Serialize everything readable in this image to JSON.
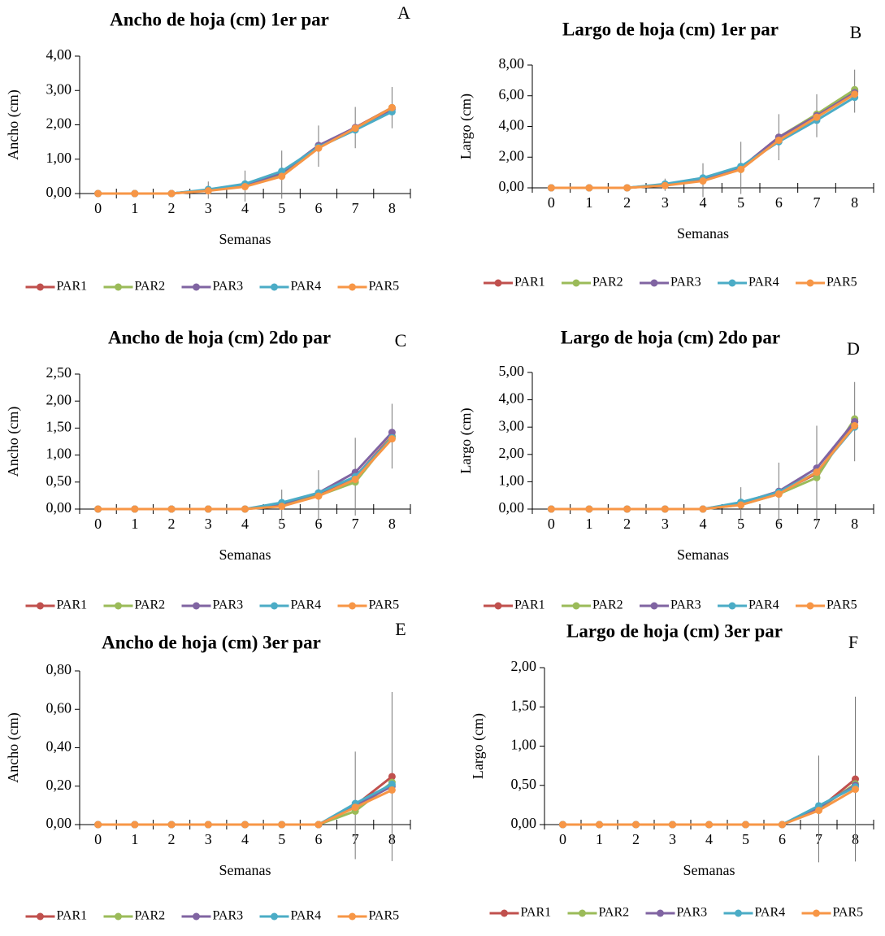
{
  "chart_data": [
    {
      "type": "line",
      "title": "Ancho de hoja (cm) 1er par",
      "panel": "A",
      "xlabel": "Semanas",
      "ylabel": "Ancho  (cm)",
      "categories": [
        "0",
        "1",
        "2",
        "3",
        "4",
        "5",
        "6",
        "7",
        "8"
      ],
      "ylim": [
        0,
        4
      ],
      "yticks": [
        {
          "value": 0,
          "label": "0,00"
        },
        {
          "value": 1,
          "label": "1,00"
        },
        {
          "value": 2,
          "label": "2,00"
        },
        {
          "value": 3,
          "label": "3,00"
        },
        {
          "value": 4,
          "label": "4,00"
        }
      ],
      "grid": false,
      "legend": "bottom",
      "series": [
        {
          "name": "PAR1",
          "color": "#c0504d",
          "values": [
            0,
            0,
            0,
            0.1,
            0.22,
            0.55,
            1.38,
            1.92,
            2.5
          ],
          "errors": [
            0,
            0,
            0,
            0.25,
            0.45,
            0.7,
            0.6,
            0.6,
            0.6
          ]
        },
        {
          "name": "PAR2",
          "color": "#9bbb59",
          "values": [
            0,
            0,
            0,
            0.1,
            0.22,
            0.52,
            1.35,
            1.9,
            2.5
          ]
        },
        {
          "name": "PAR3",
          "color": "#8064a2",
          "values": [
            0,
            0,
            0,
            0.1,
            0.25,
            0.6,
            1.4,
            1.92,
            2.45
          ]
        },
        {
          "name": "PAR4",
          "color": "#4bacc6",
          "values": [
            0,
            0,
            0,
            0.12,
            0.28,
            0.65,
            1.35,
            1.85,
            2.38
          ]
        },
        {
          "name": "PAR5",
          "color": "#f79646",
          "values": [
            0,
            0,
            0,
            0.08,
            0.2,
            0.5,
            1.32,
            1.9,
            2.5
          ]
        }
      ]
    },
    {
      "type": "line",
      "title": "Largo de hoja (cm) 1er par",
      "panel": "B",
      "xlabel": "Semanas",
      "ylabel": "Largo (cm)",
      "categories": [
        "0",
        "1",
        "2",
        "3",
        "4",
        "5",
        "6",
        "7",
        "8"
      ],
      "ylim": [
        0,
        8
      ],
      "yticks": [
        {
          "value": 0,
          "label": "0,00"
        },
        {
          "value": 2,
          "label": "2,00"
        },
        {
          "value": 4,
          "label": "4,00"
        },
        {
          "value": 6,
          "label": "6,00"
        },
        {
          "value": 8,
          "label": "8,00"
        }
      ],
      "grid": false,
      "legend": "bottom",
      "series": [
        {
          "name": "PAR1",
          "color": "#c0504d",
          "values": [
            0,
            0,
            0,
            0.2,
            0.5,
            1.3,
            3.3,
            4.7,
            6.3
          ],
          "errors": [
            0,
            0,
            0,
            0.4,
            1.1,
            1.7,
            1.5,
            1.4,
            1.4
          ]
        },
        {
          "name": "PAR2",
          "color": "#9bbb59",
          "values": [
            0,
            0,
            0,
            0.2,
            0.5,
            1.2,
            3.3,
            4.8,
            6.4
          ]
        },
        {
          "name": "PAR3",
          "color": "#8064a2",
          "values": [
            0,
            0,
            0,
            0.2,
            0.55,
            1.3,
            3.3,
            4.7,
            6.2
          ]
        },
        {
          "name": "PAR4",
          "color": "#4bacc6",
          "values": [
            0,
            0,
            0,
            0.25,
            0.65,
            1.4,
            3.0,
            4.4,
            5.9
          ]
        },
        {
          "name": "PAR5",
          "color": "#f79646",
          "values": [
            0,
            0,
            0,
            0.15,
            0.45,
            1.2,
            3.1,
            4.6,
            6.1
          ]
        }
      ]
    },
    {
      "type": "line",
      "title": "Ancho de hoja (cm) 2do par",
      "panel": "C",
      "xlabel": "Semanas",
      "ylabel": "Ancho  (cm)",
      "categories": [
        "0",
        "1",
        "2",
        "3",
        "4",
        "5",
        "6",
        "7",
        "8"
      ],
      "ylim": [
        0,
        2.5
      ],
      "yticks": [
        {
          "value": 0,
          "label": "0,00"
        },
        {
          "value": 0.5,
          "label": "0,50"
        },
        {
          "value": 1,
          "label": "1,00"
        },
        {
          "value": 1.5,
          "label": "1,50"
        },
        {
          "value": 2,
          "label": "2,00"
        },
        {
          "value": 2.5,
          "label": "2,50"
        }
      ],
      "grid": false,
      "legend": "bottom",
      "series": [
        {
          "name": "PAR1",
          "color": "#c0504d",
          "values": [
            0,
            0,
            0,
            0,
            0,
            0.08,
            0.27,
            0.6,
            1.35
          ],
          "errors": [
            0,
            0,
            0,
            0,
            0,
            0.28,
            0.45,
            0.72,
            0.6
          ]
        },
        {
          "name": "PAR2",
          "color": "#9bbb59",
          "values": [
            0,
            0,
            0,
            0,
            0,
            0.07,
            0.25,
            0.5,
            1.35
          ]
        },
        {
          "name": "PAR3",
          "color": "#8064a2",
          "values": [
            0,
            0,
            0,
            0,
            0,
            0.1,
            0.3,
            0.68,
            1.42
          ]
        },
        {
          "name": "PAR4",
          "color": "#4bacc6",
          "values": [
            0,
            0,
            0,
            0,
            0,
            0.12,
            0.3,
            0.6,
            1.32
          ]
        },
        {
          "name": "PAR5",
          "color": "#f79646",
          "values": [
            0,
            0,
            0,
            0,
            0,
            0.05,
            0.24,
            0.55,
            1.3
          ]
        }
      ]
    },
    {
      "type": "line",
      "title": "Largo de hoja (cm) 2do par",
      "panel": "D",
      "xlabel": "Semanas",
      "ylabel": "Largo (cm)",
      "categories": [
        "0",
        "1",
        "2",
        "3",
        "4",
        "5",
        "6",
        "7",
        "8"
      ],
      "ylim": [
        0,
        5
      ],
      "yticks": [
        {
          "value": 0,
          "label": "0,00"
        },
        {
          "value": 1,
          "label": "1,00"
        },
        {
          "value": 2,
          "label": "2,00"
        },
        {
          "value": 3,
          "label": "3,00"
        },
        {
          "value": 4,
          "label": "4,00"
        },
        {
          "value": 5,
          "label": "5,00"
        }
      ],
      "grid": false,
      "legend": "bottom",
      "series": [
        {
          "name": "PAR1",
          "color": "#c0504d",
          "values": [
            0,
            0,
            0,
            0,
            0,
            0.2,
            0.6,
            1.3,
            3.2
          ],
          "errors": [
            0,
            0,
            0,
            0,
            0,
            0.6,
            1.1,
            1.75,
            1.45
          ]
        },
        {
          "name": "PAR2",
          "color": "#9bbb59",
          "values": [
            0,
            0,
            0,
            0,
            0,
            0.15,
            0.55,
            1.15,
            3.3
          ]
        },
        {
          "name": "PAR3",
          "color": "#8064a2",
          "values": [
            0,
            0,
            0,
            0,
            0,
            0.22,
            0.65,
            1.5,
            3.2
          ]
        },
        {
          "name": "PAR4",
          "color": "#4bacc6",
          "values": [
            0,
            0,
            0,
            0,
            0,
            0.25,
            0.62,
            1.35,
            3.0
          ]
        },
        {
          "name": "PAR5",
          "color": "#f79646",
          "values": [
            0,
            0,
            0,
            0,
            0,
            0.15,
            0.55,
            1.35,
            3.05
          ]
        }
      ]
    },
    {
      "type": "line",
      "title": "Ancho de hoja (cm) 3er par",
      "panel": "E",
      "xlabel": "Semanas",
      "ylabel": "Ancho  (cm)",
      "categories": [
        "0",
        "1",
        "2",
        "3",
        "4",
        "5",
        "6",
        "7",
        "8"
      ],
      "ylim": [
        0,
        0.8
      ],
      "yticks": [
        {
          "value": 0,
          "label": "0,00"
        },
        {
          "value": 0.2,
          "label": "0,20"
        },
        {
          "value": 0.4,
          "label": "0,40"
        },
        {
          "value": 0.6,
          "label": "0,60"
        },
        {
          "value": 0.8,
          "label": "0,80"
        }
      ],
      "grid": false,
      "legend": "bottom",
      "series": [
        {
          "name": "PAR1",
          "color": "#c0504d",
          "values": [
            0,
            0,
            0,
            0,
            0,
            0,
            0,
            0.1,
            0.25
          ],
          "errors": [
            0,
            0,
            0,
            0,
            0,
            0,
            0,
            0.28,
            0.44
          ]
        },
        {
          "name": "PAR2",
          "color": "#9bbb59",
          "values": [
            0,
            0,
            0,
            0,
            0,
            0,
            0,
            0.07,
            0.22
          ]
        },
        {
          "name": "PAR3",
          "color": "#8064a2",
          "values": [
            0,
            0,
            0,
            0,
            0,
            0,
            0,
            0.1,
            0.2
          ]
        },
        {
          "name": "PAR4",
          "color": "#4bacc6",
          "values": [
            0,
            0,
            0,
            0,
            0,
            0,
            0,
            0.11,
            0.21
          ]
        },
        {
          "name": "PAR5",
          "color": "#f79646",
          "values": [
            0,
            0,
            0,
            0,
            0,
            0,
            0,
            0.09,
            0.18
          ]
        }
      ]
    },
    {
      "type": "line",
      "title": "Largo de hoja (cm) 3er par",
      "panel": "F",
      "xlabel": "Semanas",
      "ylabel": "Largo (cm)",
      "categories": [
        "0",
        "1",
        "2",
        "3",
        "4",
        "5",
        "6",
        "7",
        "8"
      ],
      "ylim": [
        0,
        2
      ],
      "yticks": [
        {
          "value": 0,
          "label": "0,00"
        },
        {
          "value": 0.5,
          "label": "0,50"
        },
        {
          "value": 1,
          "label": "1,00"
        },
        {
          "value": 1.5,
          "label": "1,50"
        },
        {
          "value": 2,
          "label": "2,00"
        }
      ],
      "grid": false,
      "legend": "bottom",
      "series": [
        {
          "name": "PAR1",
          "color": "#c0504d",
          "values": [
            0,
            0,
            0,
            0,
            0,
            0,
            0,
            0.2,
            0.58
          ],
          "errors": [
            0,
            0,
            0,
            0,
            0,
            0,
            0,
            0.68,
            1.05
          ]
        },
        {
          "name": "PAR2",
          "color": "#9bbb59",
          "values": [
            0,
            0,
            0,
            0,
            0,
            0,
            0,
            0.2,
            0.52
          ]
        },
        {
          "name": "PAR3",
          "color": "#8064a2",
          "values": [
            0,
            0,
            0,
            0,
            0,
            0,
            0,
            0.22,
            0.5
          ]
        },
        {
          "name": "PAR4",
          "color": "#4bacc6",
          "values": [
            0,
            0,
            0,
            0,
            0,
            0,
            0,
            0.24,
            0.48
          ]
        },
        {
          "name": "PAR5",
          "color": "#f79646",
          "values": [
            0,
            0,
            0,
            0,
            0,
            0,
            0,
            0.18,
            0.45
          ]
        }
      ]
    }
  ]
}
